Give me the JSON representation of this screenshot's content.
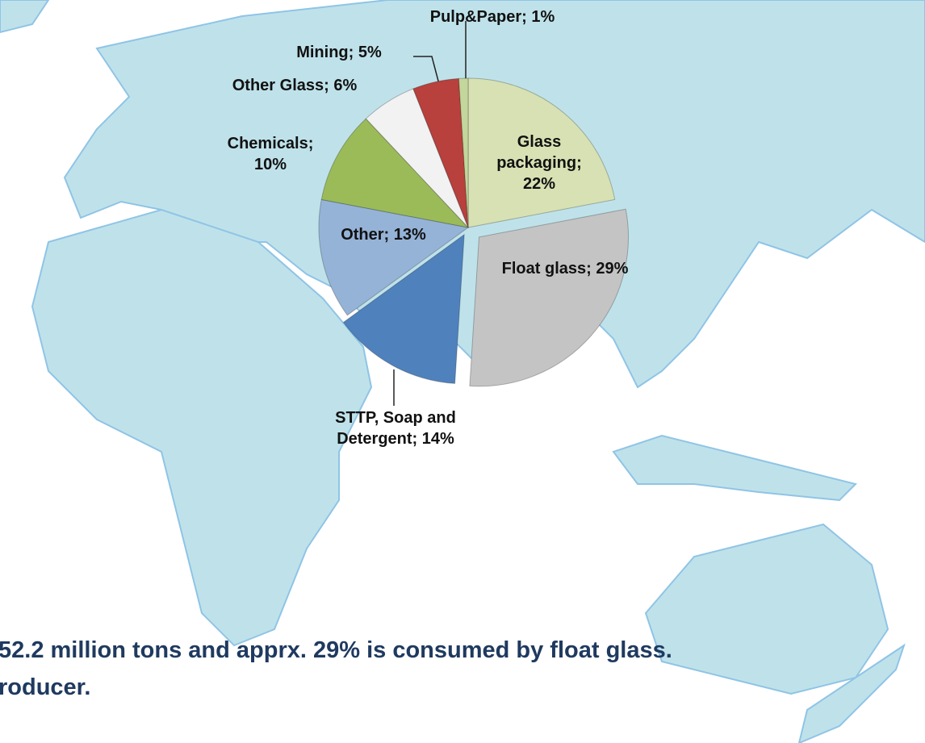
{
  "chart_data": {
    "type": "pie",
    "values": [
      22,
      29,
      14,
      13,
      10,
      6,
      5,
      1
    ],
    "value_labels": [
      "Glass packaging; 22%",
      "Float glass; 29%",
      "STTP, Soap and Detergent; 14%",
      "Other; 13%",
      "Chemicals; 10%",
      "Other Glass; 6%",
      "Mining; 5%",
      "Pulp&Paper; 1%"
    ],
    "colors": [
      "#d7e1b3",
      "#c4c4c4",
      "#4f81bd",
      "#95b3d7",
      "#9bbb59",
      "#f2f2f2",
      "#b8403d",
      "#c3d69b"
    ],
    "annotations": [
      "52.2 million tons and apprx. 29% is consumed by float glass.",
      "roducer."
    ]
  }
}
